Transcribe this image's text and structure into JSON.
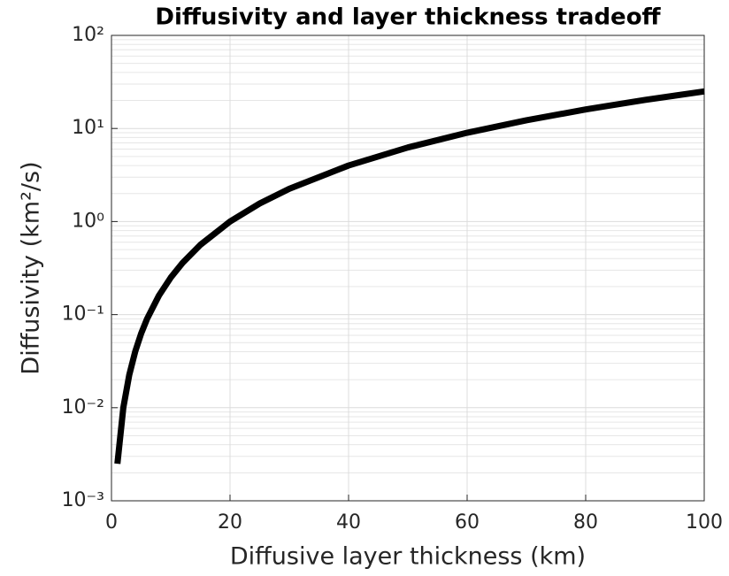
{
  "chart_data": {
    "type": "line",
    "title": "Diffusivity and layer thickness tradeoff",
    "x_label": "Diffusive layer thickness (km)",
    "y_label": "Diffusivity (km²/s)",
    "x": [
      1,
      2,
      3,
      4,
      5,
      6,
      8,
      10,
      12,
      15,
      20,
      25,
      30,
      40,
      50,
      60,
      70,
      80,
      90,
      100
    ],
    "series": [
      {
        "color": "#000000",
        "values": [
          0.0025,
          0.01,
          0.0225,
          0.04,
          0.0625,
          0.09,
          0.16,
          0.25,
          0.36,
          0.5625,
          1,
          1.5625,
          2.25,
          4,
          6.25,
          9,
          12.25,
          16,
          20.25,
          25
        ]
      }
    ],
    "xlim": [
      0,
      100
    ],
    "xticks": [
      0,
      20,
      40,
      60,
      80,
      100
    ],
    "ylim": [
      0.001,
      100
    ],
    "yticks": [
      {
        "value": 0.001,
        "label": "10⁻³"
      },
      {
        "value": 0.01,
        "label": "10⁻²"
      },
      {
        "value": 0.1,
        "label": "10⁻¹"
      },
      {
        "value": 1,
        "label": "10⁰"
      },
      {
        "value": 10,
        "label": "10¹"
      },
      {
        "value": 100,
        "label": "10²"
      }
    ],
    "y_scale": "log",
    "grid": true,
    "minor_grid": true
  }
}
